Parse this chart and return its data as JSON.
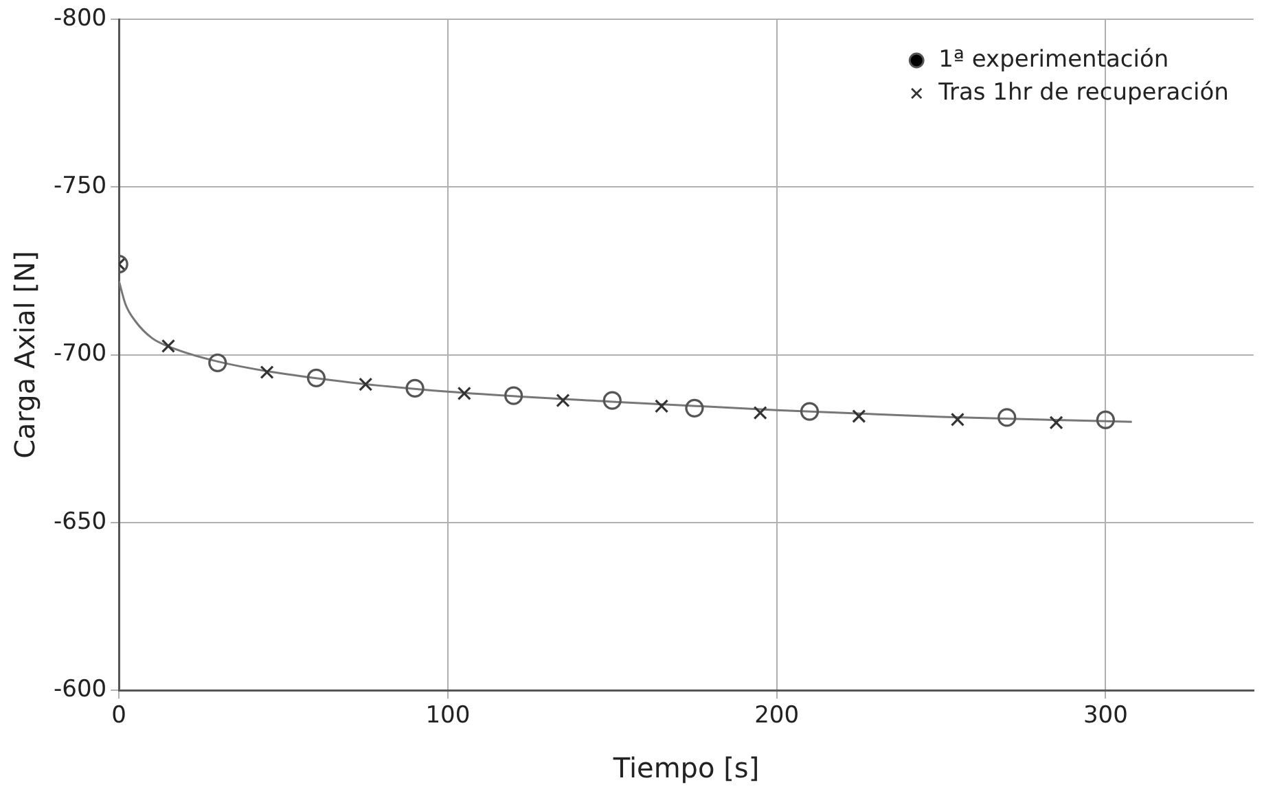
{
  "chart_data": {
    "type": "scatter",
    "xlabel": "Tiempo [s]",
    "ylabel": "Carga Axial [N]",
    "xlim": [
      0,
      345
    ],
    "xticks": [
      0,
      100,
      200,
      300
    ],
    "ylim": [
      -600,
      -800
    ],
    "yticks": [
      -600,
      -650,
      -700,
      -750,
      -800
    ],
    "grid": true,
    "legend": "top right",
    "series": [
      {
        "name": "1ª experimentación",
        "color": "#555555",
        "marker": "circle",
        "x": [
          0,
          30,
          60,
          90,
          120,
          150,
          175,
          210,
          270,
          300
        ],
        "values": [
          -727,
          -697.6,
          -693.1,
          -690,
          -687.8,
          -686.4,
          -684.1,
          -683.1,
          -681.3,
          -680.6
        ]
      },
      {
        "name": "Tras 1hr de recuperación",
        "color": "#333333",
        "marker": "cross",
        "x": [
          0,
          15,
          45,
          75,
          105,
          135,
          165,
          195,
          225,
          255,
          285
        ],
        "values": [
          -727,
          -702.6,
          -694.8,
          -691.2,
          -688.5,
          -686.4,
          -684.7,
          -682.7,
          -681.7,
          -680.7,
          -679.8
        ]
      },
      {
        "type": "line",
        "color": "#777777",
        "marker": "none",
        "line_style": "solid",
        "x": [
          0,
          2,
          5,
          10,
          15,
          30,
          60,
          100,
          150,
          200,
          250,
          308
        ],
        "values": [
          -722,
          -715,
          -710,
          -705,
          -702.5,
          -698,
          -693,
          -689,
          -686,
          -683.5,
          -681.5,
          -680
        ]
      }
    ]
  }
}
